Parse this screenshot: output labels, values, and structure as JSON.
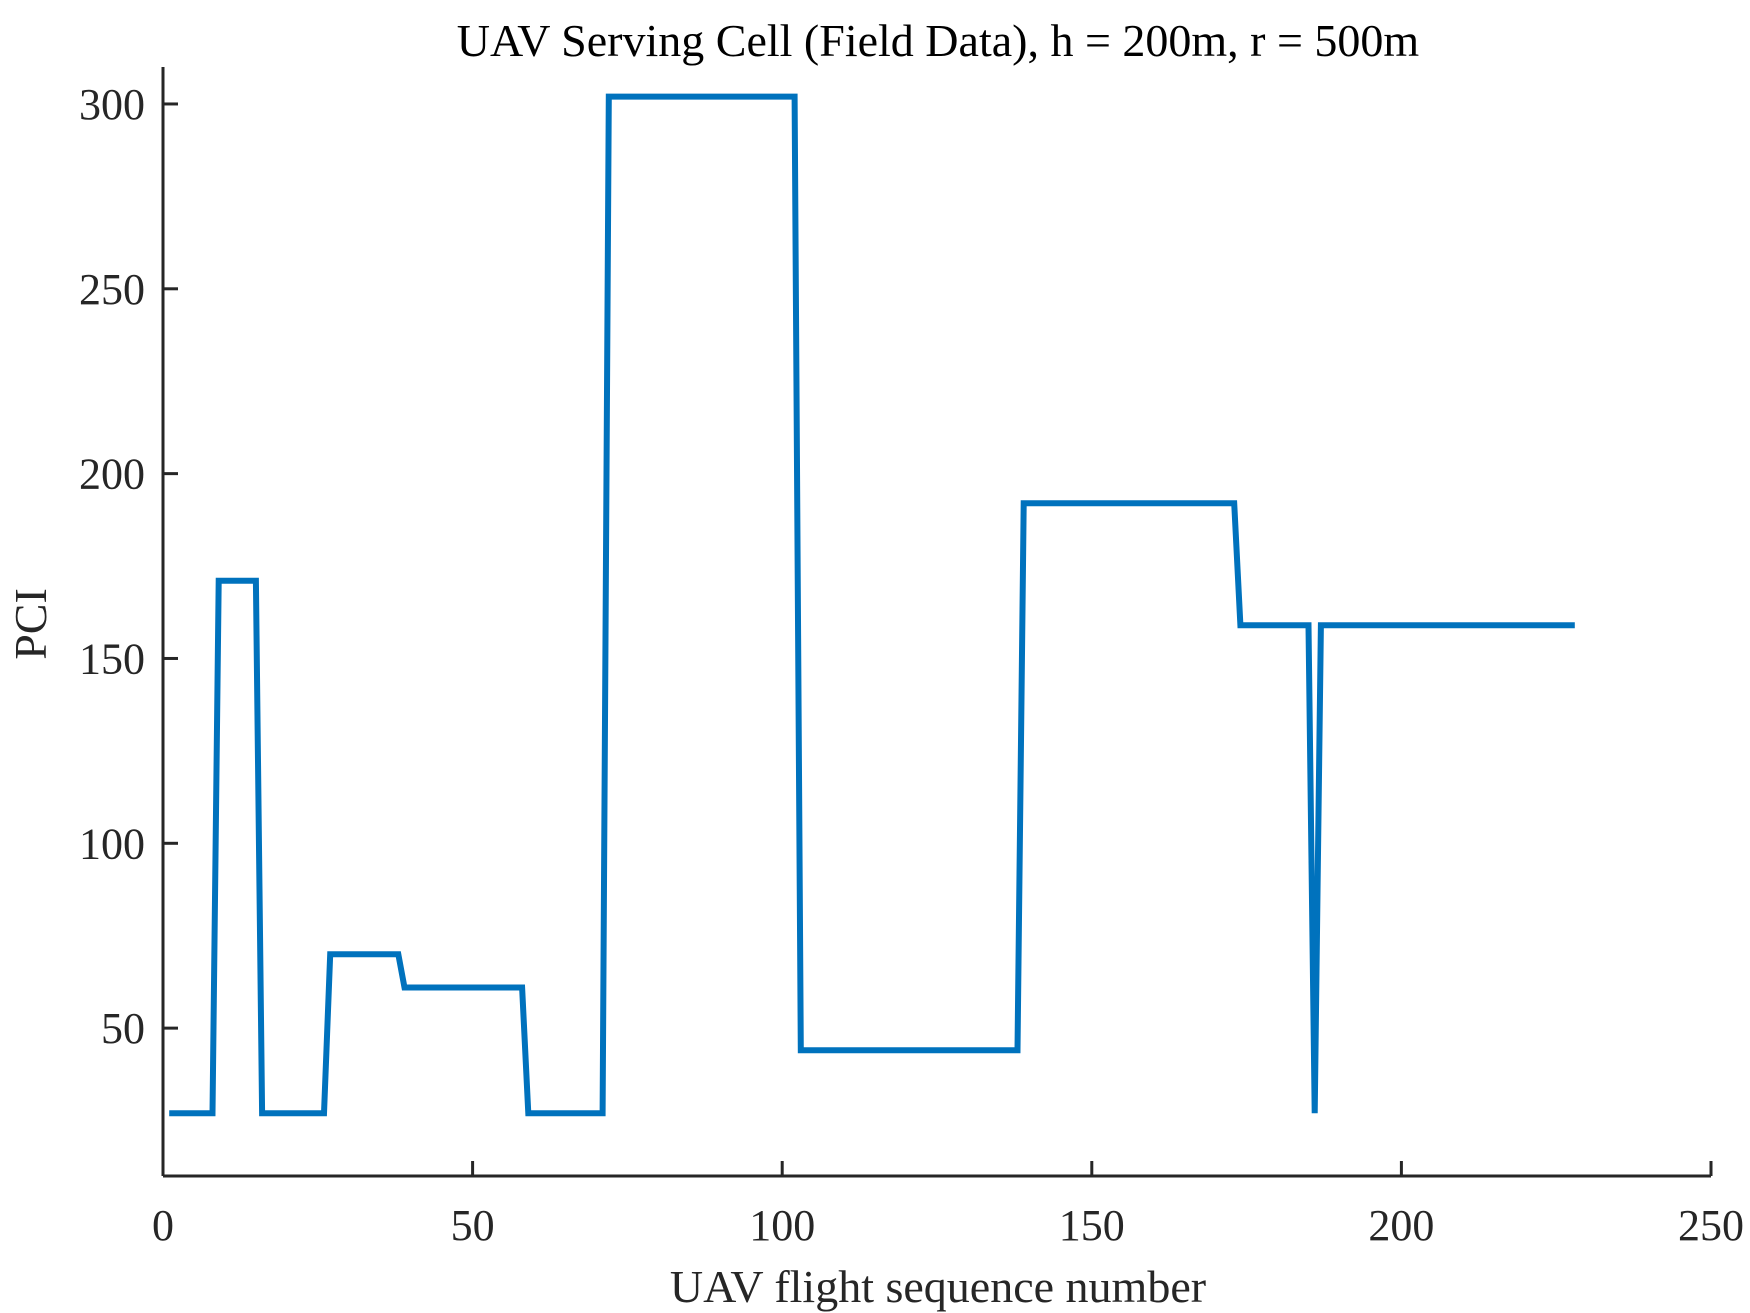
{
  "chart_data": {
    "type": "line",
    "title": "UAV Serving Cell (Field Data), h = 200m, r = 500m",
    "xlabel": "UAV flight sequence number",
    "ylabel": "PCI",
    "xlim": [
      0,
      250
    ],
    "ylim": [
      10,
      310
    ],
    "xticks": [
      0,
      50,
      100,
      150,
      200,
      250
    ],
    "yticks": [
      50,
      100,
      150,
      200,
      250,
      300
    ],
    "grid": false,
    "legend": "none",
    "colors": {
      "line": "#0072BD",
      "axis": "#262626"
    },
    "series": [
      {
        "x": [
          1,
          8,
          9,
          15,
          16,
          26,
          27,
          38,
          39,
          58,
          59,
          71,
          72,
          102,
          103,
          138,
          139,
          173,
          174,
          185,
          186,
          187,
          228
        ],
        "values": [
          27,
          27,
          171,
          171,
          27,
          27,
          70,
          70,
          61,
          61,
          27,
          27,
          302,
          302,
          44,
          44,
          192,
          192,
          159,
          159,
          27,
          159,
          159
        ]
      }
    ]
  }
}
